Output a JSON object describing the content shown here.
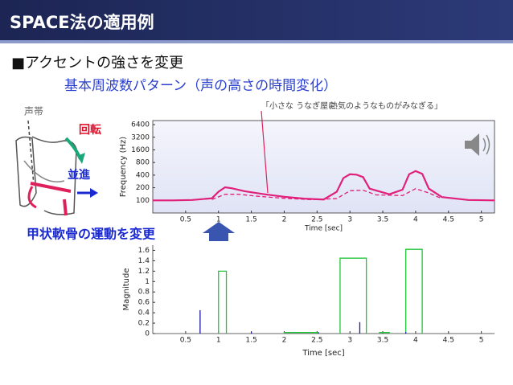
{
  "slide": {
    "title": "SPACE法の適用例",
    "bullet": "■アクセントの強さを変更",
    "subheading": "基本周波数パターン（声の高さの時間変化）",
    "diagram": {
      "vocal_folds": "声帯",
      "rotation": "回転",
      "translation": "並進",
      "caption": "甲状軟骨の運動を変更"
    },
    "utterance": [
      "「小さな うなぎ屋に",
      "熱気のようなものがみなぎる」"
    ]
  },
  "chart_data": [
    {
      "type": "line",
      "xlabel": "Time [sec]",
      "ylabel": "Frequency (Hz)",
      "log_y": true,
      "xlim": [
        0,
        5.2
      ],
      "xticks": [
        0.5,
        1,
        1.5,
        2,
        2.5,
        3,
        3.5,
        4,
        4.5,
        5
      ],
      "ylim": [
        50,
        8000
      ],
      "yticks": [
        100,
        200,
        400,
        800,
        1600,
        3200,
        6400
      ],
      "series": [
        {
          "color": "#e0207a",
          "dashed": false,
          "x": [
            0,
            0.3,
            0.6,
            0.9,
            1.0,
            1.1,
            1.2,
            1.4,
            1.7,
            2.0,
            2.3,
            2.6,
            2.8,
            2.9,
            3.0,
            3.1,
            3.2,
            3.3,
            3.6,
            3.8,
            3.9,
            4.0,
            4.1,
            4.2,
            4.4,
            4.8,
            5.2
          ],
          "values": [
            100,
            100,
            102,
            112,
            160,
            205,
            195,
            165,
            140,
            122,
            110,
            105,
            160,
            340,
            420,
            410,
            360,
            190,
            140,
            180,
            420,
            500,
            430,
            190,
            120,
            102,
            100
          ]
        },
        {
          "color": "#e0207a",
          "dashed": true,
          "x": [
            0.9,
            1.1,
            1.3,
            1.6,
            2.0,
            2.4,
            2.8,
            3.0,
            3.2,
            3.4,
            3.8,
            4.0,
            4.2,
            4.4
          ],
          "values": [
            105,
            140,
            140,
            125,
            112,
            104,
            110,
            170,
            175,
            135,
            130,
            190,
            150,
            110
          ]
        }
      ]
    },
    {
      "type": "bar",
      "xlabel": "Time [sec]",
      "ylabel": "Magnitude",
      "xlim": [
        0,
        5.2
      ],
      "xticks": [
        0.5,
        1,
        1.5,
        2,
        2.5,
        3,
        3.5,
        4,
        4.5,
        5
      ],
      "ylim": [
        0,
        1.7
      ],
      "yticks": [
        0,
        0.2,
        0.4,
        0.6,
        0.8,
        1,
        1.2,
        1.4,
        1.6
      ],
      "series": [
        {
          "color": "#22c43a",
          "style": "outline",
          "x_start": [
            1.0,
            2.0,
            2.85,
            3.45,
            3.85
          ],
          "x_end": [
            1.12,
            2.5,
            3.25,
            3.6,
            4.1
          ],
          "values": [
            1.2,
            0.02,
            1.45,
            0.02,
            1.62
          ]
        },
        {
          "color": "#1a1aa0",
          "style": "stem",
          "x": [
            0.72,
            1.5,
            2.52,
            3.15,
            3.85
          ],
          "values": [
            0.45,
            0.03,
            0.03,
            0.22,
            0.03
          ]
        }
      ]
    }
  ]
}
